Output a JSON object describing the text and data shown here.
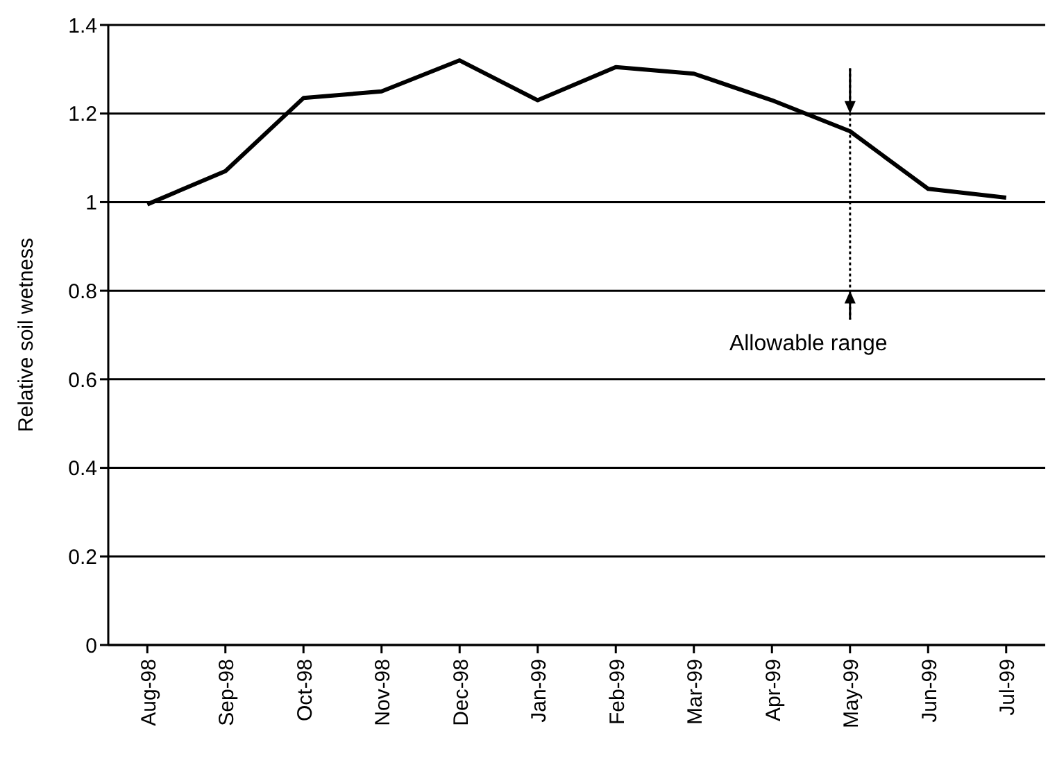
{
  "chart_data": {
    "type": "line",
    "ylabel": "Relative soil wetness",
    "categories": [
      "Aug-98",
      "Sep-98",
      "Oct-98",
      "Nov-98",
      "Dec-98",
      "Jan-99",
      "Feb-99",
      "Mar-99",
      "Apr-99",
      "May-99",
      "Jun-99",
      "Jul-99"
    ],
    "series": [
      {
        "color": "#000000",
        "values": [
          0.995,
          1.07,
          1.235,
          1.25,
          1.32,
          1.23,
          1.305,
          1.29,
          1.23,
          1.16,
          1.03,
          1.01
        ]
      }
    ],
    "ylim": [
      0,
      1.4
    ],
    "yticks": [
      0,
      0.2,
      0.4,
      0.6,
      0.8,
      1,
      1.2,
      1.4
    ],
    "grid": "y",
    "marker": "none",
    "line_style": "solid",
    "legend": false,
    "annotations": [
      "Allowable range"
    ]
  }
}
